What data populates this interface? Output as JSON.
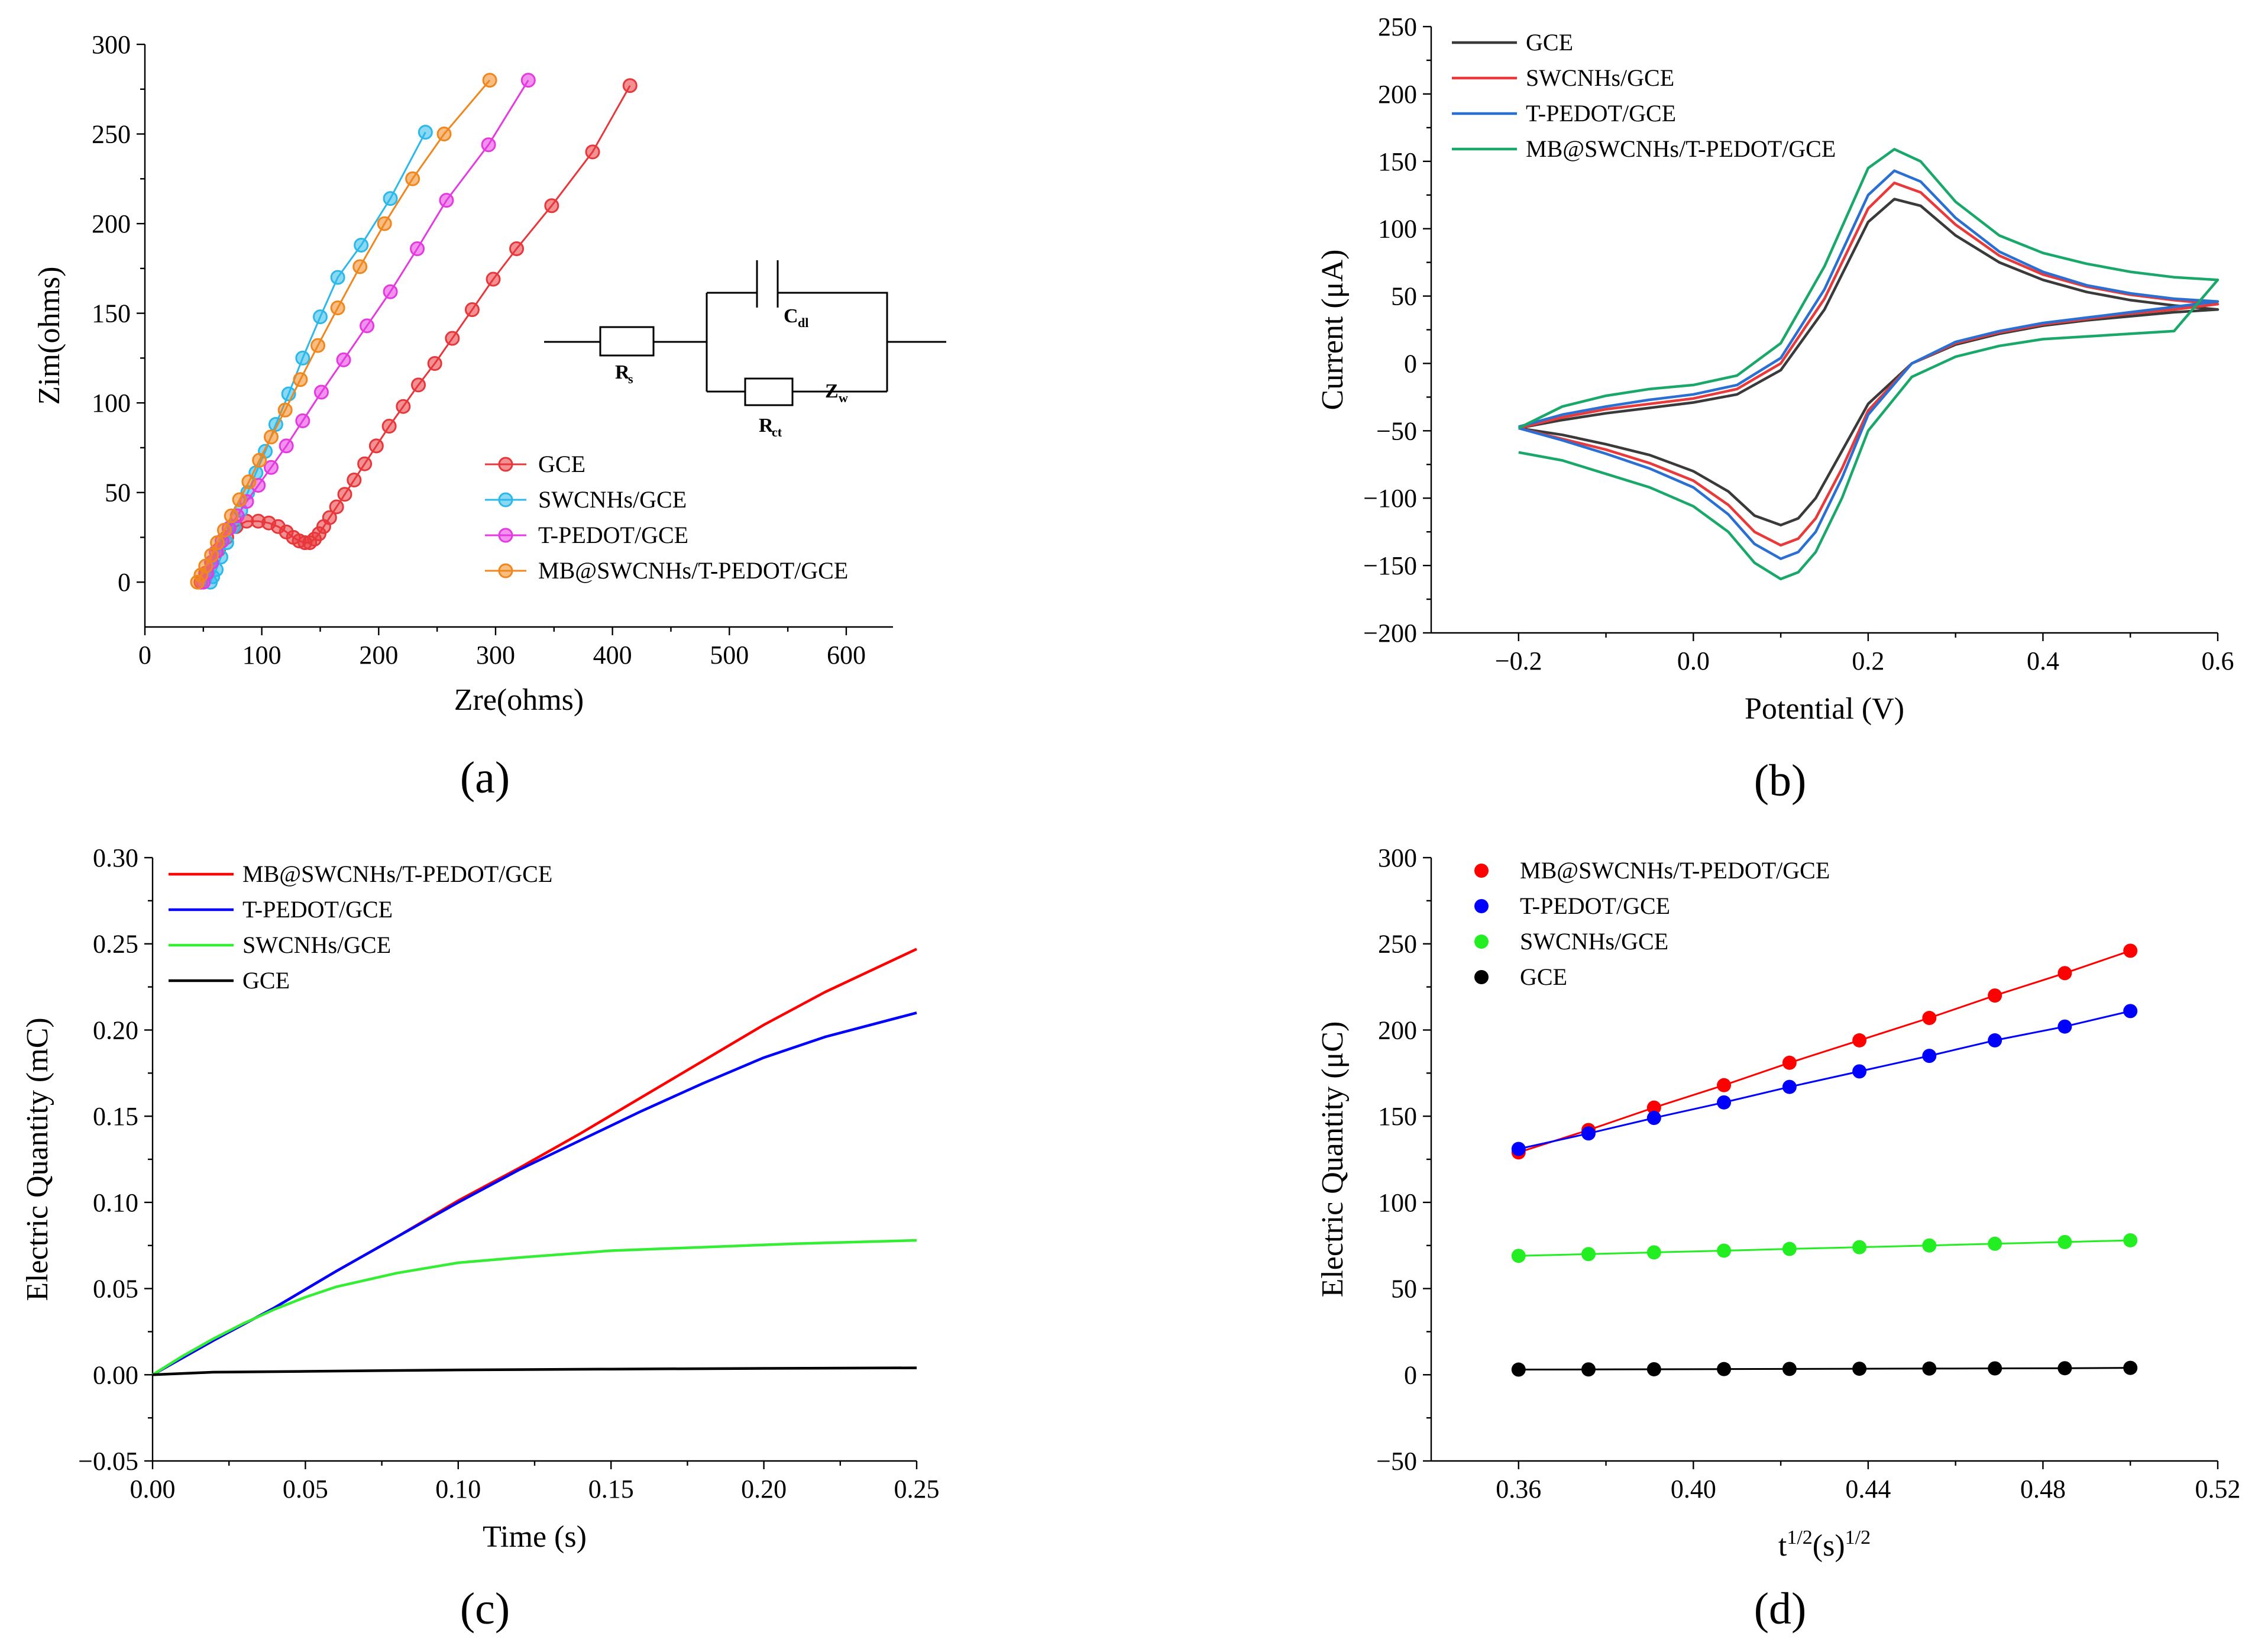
{
  "chart_data": [
    {
      "id": "a",
      "type": "scatter",
      "panel_label": "(a)",
      "xlabel": "Zre(ohms)",
      "ylabel": "Zim(ohms)",
      "xlim": [
        0,
        640
      ],
      "ylim": [
        -25,
        300
      ],
      "xticks": [
        0,
        100,
        200,
        300,
        400,
        500,
        600
      ],
      "yticks": [
        0,
        50,
        100,
        150,
        200,
        250,
        300
      ],
      "lines_connected": true,
      "legend_position": "inside-center-right",
      "series": [
        {
          "name": "GCE",
          "color": "#e8373a",
          "x": [
            48,
            52,
            57,
            63,
            70,
            78,
            87,
            97,
            106,
            114,
            121,
            127,
            132,
            137,
            141,
            145,
            149,
            153,
            158,
            164,
            171,
            179,
            188,
            198,
            209,
            221,
            234,
            248,
            263,
            280,
            298,
            318,
            348,
            383,
            415
          ],
          "y": [
            0,
            5,
            11,
            18,
            25,
            31,
            34,
            34,
            33,
            31,
            28,
            25,
            23,
            22,
            22,
            24,
            27,
            31,
            36,
            42,
            49,
            57,
            66,
            76,
            87,
            98,
            110,
            122,
            136,
            152,
            169,
            186,
            210,
            240,
            277
          ]
        },
        {
          "name": "SWCNHs/GCE",
          "color": "#2bb8ea",
          "x": [
            56,
            58,
            61,
            65,
            70,
            76,
            82,
            88,
            95,
            103,
            112,
            123,
            135,
            150,
            165,
            185,
            210,
            240
          ],
          "y": [
            0,
            3,
            7,
            14,
            22,
            31,
            40,
            50,
            61,
            73,
            88,
            105,
            125,
            148,
            170,
            188,
            214,
            251
          ]
        },
        {
          "name": "T-PEDOT/GCE",
          "color": "#e53ae0",
          "x": [
            50,
            53,
            57,
            61,
            66,
            72,
            79,
            87,
            97,
            108,
            121,
            135,
            151,
            170,
            190,
            210,
            233,
            258,
            294,
            328
          ],
          "y": [
            0,
            5,
            11,
            17,
            23,
            30,
            37,
            45,
            54,
            64,
            76,
            90,
            106,
            124,
            143,
            162,
            186,
            213,
            244,
            280
          ]
        },
        {
          "name": "MB@SWCNHs/T-PEDOT/GCE",
          "color": "#f0871e",
          "x": [
            45,
            48,
            52,
            57,
            62,
            68,
            74,
            81,
            89,
            98,
            108,
            120,
            133,
            148,
            165,
            184,
            205,
            229,
            256,
            295
          ],
          "y": [
            0,
            4,
            9,
            15,
            22,
            29,
            37,
            46,
            56,
            68,
            81,
            96,
            113,
            132,
            153,
            176,
            200,
            225,
            250,
            280
          ]
        }
      ],
      "inset": {
        "labels": {
          "rs": "R",
          "rs_sub": "s",
          "cdl": "C",
          "cdl_sub": "dl",
          "rct": "R",
          "rct_sub": "ct",
          "zw": "Z",
          "zw_sub": "w"
        }
      }
    },
    {
      "id": "b",
      "type": "line",
      "panel_label": "(b)",
      "xlabel": "Potential (V)",
      "ylabel": "Current (μA)",
      "xlim": [
        -0.3,
        0.6
      ],
      "ylim": [
        -200,
        250
      ],
      "xticks": [
        -0.2,
        0.0,
        0.2,
        0.4,
        0.6
      ],
      "xtick_labels": [
        "−0.2",
        "0.0",
        "0.2",
        "0.4",
        "0.6"
      ],
      "yticks": [
        -200,
        -150,
        -100,
        -50,
        0,
        50,
        100,
        150,
        200,
        250
      ],
      "ytick_labels": [
        "−200",
        "−150",
        "−100",
        "−50",
        "0",
        "50",
        "100",
        "150",
        "200",
        "250"
      ],
      "legend_position": "top-left",
      "series": [
        {
          "name": "GCE",
          "color": "#3a3a3a",
          "x": [
            -0.2,
            -0.15,
            -0.1,
            -0.05,
            0.0,
            0.05,
            0.1,
            0.15,
            0.2,
            0.23,
            0.26,
            0.3,
            0.35,
            0.4,
            0.45,
            0.5,
            0.55,
            0.6,
            0.55,
            0.5,
            0.45,
            0.4,
            0.35,
            0.3,
            0.25,
            0.2,
            0.17,
            0.14,
            0.12,
            0.1,
            0.07,
            0.04,
            0.0,
            -0.05,
            -0.1,
            -0.15,
            -0.2
          ],
          "y": [
            -48,
            -42,
            -37,
            -33,
            -29,
            -23,
            -5,
            40,
            105,
            122,
            117,
            95,
            75,
            62,
            53,
            47,
            43,
            40,
            38,
            35,
            32,
            28,
            22,
            14,
            0,
            -30,
            -65,
            -100,
            -115,
            -120,
            -113,
            -95,
            -80,
            -68,
            -60,
            -53,
            -48
          ]
        },
        {
          "name": "SWCNHs/GCE",
          "color": "#e83a3a",
          "x": [
            -0.2,
            -0.15,
            -0.1,
            -0.05,
            0.0,
            0.05,
            0.1,
            0.15,
            0.2,
            0.23,
            0.26,
            0.3,
            0.35,
            0.4,
            0.45,
            0.5,
            0.55,
            0.6,
            0.55,
            0.5,
            0.45,
            0.4,
            0.35,
            0.3,
            0.25,
            0.2,
            0.17,
            0.14,
            0.12,
            0.1,
            0.07,
            0.04,
            0.0,
            -0.05,
            -0.1,
            -0.15,
            -0.2
          ],
          "y": [
            -48,
            -40,
            -34,
            -30,
            -26,
            -19,
            0,
            48,
            115,
            134,
            127,
            103,
            80,
            66,
            57,
            51,
            47,
            44,
            40,
            37,
            33,
            29,
            23,
            15,
            0,
            -35,
            -78,
            -115,
            -130,
            -135,
            -125,
            -105,
            -87,
            -74,
            -64,
            -56,
            -48
          ]
        },
        {
          "name": "T-PEDOT/GCE",
          "color": "#2a6fd1",
          "x": [
            -0.2,
            -0.15,
            -0.1,
            -0.05,
            0.0,
            0.05,
            0.1,
            0.15,
            0.2,
            0.23,
            0.26,
            0.3,
            0.35,
            0.4,
            0.45,
            0.5,
            0.55,
            0.6,
            0.55,
            0.5,
            0.45,
            0.4,
            0.35,
            0.3,
            0.25,
            0.2,
            0.17,
            0.14,
            0.12,
            0.1,
            0.07,
            0.04,
            0.0,
            -0.05,
            -0.1,
            -0.15,
            -0.2
          ],
          "y": [
            -47,
            -38,
            -32,
            -27,
            -23,
            -16,
            4,
            55,
            125,
            143,
            135,
            108,
            83,
            68,
            58,
            52,
            48,
            46,
            42,
            38,
            34,
            30,
            24,
            16,
            0,
            -38,
            -85,
            -125,
            -140,
            -145,
            -134,
            -112,
            -92,
            -78,
            -67,
            -57,
            -48
          ]
        },
        {
          "name": "MB@SWCNHs/T-PEDOT/GCE",
          "color": "#1aa86a",
          "x": [
            -0.2,
            -0.15,
            -0.1,
            -0.05,
            0.0,
            0.05,
            0.1,
            0.15,
            0.2,
            0.23,
            0.26,
            0.3,
            0.35,
            0.4,
            0.45,
            0.5,
            0.55,
            0.6,
            0.55,
            0.5,
            0.45,
            0.4,
            0.35,
            0.3,
            0.25,
            0.2,
            0.17,
            0.14,
            0.12,
            0.1,
            0.07,
            0.04,
            0.0,
            -0.05,
            -0.1,
            -0.15,
            -0.2
          ],
          "y": [
            -48,
            -32,
            -24,
            -19,
            -16,
            -9,
            15,
            72,
            145,
            159,
            150,
            120,
            95,
            82,
            74,
            68,
            64,
            62,
            24,
            22,
            20,
            18,
            13,
            5,
            -10,
            -50,
            -100,
            -140,
            -155,
            -160,
            -148,
            -125,
            -106,
            -92,
            -82,
            -72,
            -66
          ]
        }
      ]
    },
    {
      "id": "c",
      "type": "line",
      "panel_label": "(c)",
      "xlabel": "Time (s)",
      "ylabel": "Electric Quantity (mC)",
      "xlim": [
        0,
        0.25
      ],
      "ylim": [
        -0.05,
        0.3
      ],
      "xticks": [
        0.0,
        0.05,
        0.1,
        0.15,
        0.2,
        0.25
      ],
      "xtick_labels": [
        "0.00",
        "0.05",
        "0.10",
        "0.15",
        "0.20",
        "0.25"
      ],
      "yticks": [
        -0.05,
        0.0,
        0.05,
        0.1,
        0.15,
        0.2,
        0.25,
        0.3
      ],
      "ytick_labels": [
        "−0.05",
        "0.00",
        "0.05",
        "0.10",
        "0.15",
        "0.20",
        "0.25",
        "0.30"
      ],
      "legend_position": "top-left",
      "series": [
        {
          "name": "MB@SWCNHs/T-PEDOT/GCE",
          "color": "#ff0000",
          "x": [
            0,
            0.02,
            0.04,
            0.06,
            0.08,
            0.1,
            0.12,
            0.14,
            0.16,
            0.18,
            0.2,
            0.22,
            0.25
          ],
          "y": [
            0,
            0.02,
            0.039,
            0.06,
            0.08,
            0.101,
            0.12,
            0.14,
            0.161,
            0.182,
            0.203,
            0.222,
            0.247
          ]
        },
        {
          "name": "T-PEDOT/GCE",
          "color": "#0000ff",
          "x": [
            0,
            0.02,
            0.04,
            0.06,
            0.08,
            0.1,
            0.12,
            0.14,
            0.16,
            0.18,
            0.2,
            0.22,
            0.25
          ],
          "y": [
            0,
            0.02,
            0.039,
            0.06,
            0.08,
            0.1,
            0.119,
            0.136,
            0.153,
            0.169,
            0.184,
            0.196,
            0.21
          ]
        },
        {
          "name": "SWCNHs/GCE",
          "color": "#33ee33",
          "x": [
            0,
            0.01,
            0.02,
            0.03,
            0.04,
            0.05,
            0.06,
            0.08,
            0.1,
            0.12,
            0.15,
            0.18,
            0.21,
            0.25
          ],
          "y": [
            0,
            0.011,
            0.021,
            0.03,
            0.038,
            0.045,
            0.051,
            0.059,
            0.065,
            0.068,
            0.072,
            0.074,
            0.076,
            0.078
          ]
        },
        {
          "name": "GCE",
          "color": "#000000",
          "x": [
            0,
            0.02,
            0.05,
            0.1,
            0.15,
            0.2,
            0.25
          ],
          "y": [
            0,
            0.0015,
            0.002,
            0.0028,
            0.0033,
            0.0037,
            0.004
          ]
        }
      ]
    },
    {
      "id": "d",
      "type": "scatter",
      "panel_label": "(d)",
      "xlabel": "t",
      "xlabel_sup1": "1/2",
      "xlabel_mid": "(s)",
      "xlabel_sup2": "1/2",
      "ylabel": "Electric Quantity (μC)",
      "xlim": [
        0.34,
        0.52
      ],
      "ylim": [
        -50,
        300
      ],
      "xticks": [
        0.36,
        0.4,
        0.44,
        0.48,
        0.52
      ],
      "xtick_labels": [
        "0.36",
        "0.40",
        "0.44",
        "0.48",
        "0.52"
      ],
      "yticks": [
        -50,
        0,
        50,
        100,
        150,
        200,
        250,
        300
      ],
      "ytick_labels": [
        "−50",
        "0",
        "50",
        "100",
        "150",
        "200",
        "250",
        "300"
      ],
      "lines_connected": true,
      "legend_position": "top-left",
      "series": [
        {
          "name": "MB@SWCNHs/T-PEDOT/GCE",
          "color": "#ff0000",
          "x": [
            0.36,
            0.376,
            0.391,
            0.407,
            0.422,
            0.438,
            0.454,
            0.469,
            0.485,
            0.5
          ],
          "y": [
            129,
            142,
            155,
            168,
            181,
            194,
            207,
            220,
            233,
            246
          ]
        },
        {
          "name": "T-PEDOT/GCE",
          "color": "#0000ff",
          "x": [
            0.36,
            0.376,
            0.391,
            0.407,
            0.422,
            0.438,
            0.454,
            0.469,
            0.485,
            0.5
          ],
          "y": [
            131,
            140,
            149,
            158,
            167,
            176,
            185,
            194,
            202,
            211
          ]
        },
        {
          "name": "SWCNHs/GCE",
          "color": "#22ee22",
          "x": [
            0.36,
            0.376,
            0.391,
            0.407,
            0.422,
            0.438,
            0.454,
            0.469,
            0.485,
            0.5
          ],
          "y": [
            69,
            70,
            71,
            72,
            73,
            74,
            75,
            76,
            77,
            78
          ]
        },
        {
          "name": "GCE",
          "color": "#000000",
          "x": [
            0.36,
            0.376,
            0.391,
            0.407,
            0.422,
            0.438,
            0.454,
            0.469,
            0.485,
            0.5
          ],
          "y": [
            3,
            3.1,
            3.2,
            3.3,
            3.4,
            3.5,
            3.6,
            3.7,
            3.8,
            4
          ]
        }
      ]
    }
  ]
}
